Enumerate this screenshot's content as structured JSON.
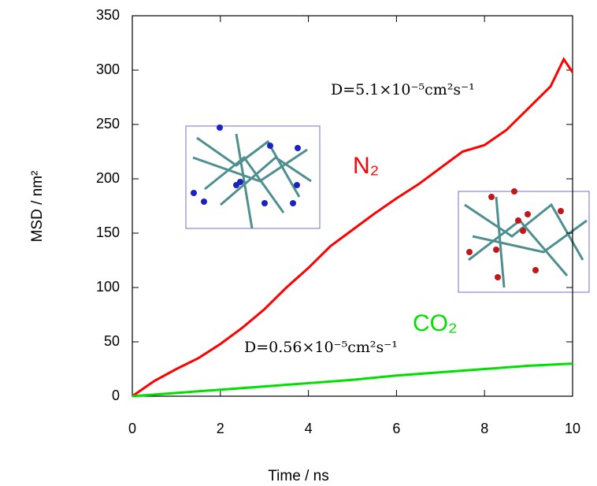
{
  "chart_data": {
    "type": "line",
    "xlabel": "Time / ns",
    "ylabel": "MSD / nm²",
    "xlim": [
      0,
      10
    ],
    "ylim": [
      0,
      350
    ],
    "xticks": [
      0,
      2,
      4,
      6,
      8,
      10
    ],
    "yticks": [
      0,
      50,
      100,
      150,
      200,
      250,
      300,
      350
    ],
    "series": [
      {
        "name": "N₂",
        "color": "#ff0000",
        "x": [
          0,
          0.5,
          1,
          1.5,
          2,
          2.5,
          3,
          3.5,
          4,
          4.5,
          5,
          5.5,
          6,
          6.5,
          7,
          7.5,
          8,
          8.5,
          9,
          9.5,
          9.8,
          10
        ],
        "values": [
          0,
          14,
          25,
          35,
          48,
          63,
          80,
          100,
          118,
          138,
          153,
          168,
          182,
          195,
          210,
          225,
          231,
          245,
          265,
          285,
          310,
          298
        ]
      },
      {
        "name": "CO₂",
        "color": "#00e000",
        "x": [
          0,
          1,
          2,
          3,
          4,
          5,
          6,
          7,
          8,
          9,
          10
        ],
        "values": [
          0,
          3,
          6,
          9,
          12,
          15,
          19,
          22,
          25,
          28,
          30
        ]
      }
    ],
    "annotations": [
      "D=5.1×10⁻⁵cm²s⁻¹",
      "D=0.56×10⁻⁵cm²s⁻¹"
    ]
  }
}
